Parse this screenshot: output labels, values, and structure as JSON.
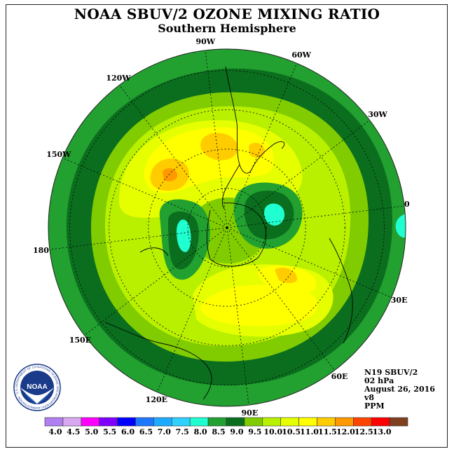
{
  "header": {
    "title": "NOAA SBUV/2 OZONE MIXING RATIO",
    "subtitle": "Southern Hemisphere"
  },
  "longitude_labels": [
    {
      "text": "90W",
      "angle": 90
    },
    {
      "text": "60W",
      "angle": 60
    },
    {
      "text": "30W",
      "angle": 30
    },
    {
      "text": "0",
      "angle": 0
    },
    {
      "text": "30E",
      "angle": -30
    },
    {
      "text": "60E",
      "angle": -60
    },
    {
      "text": "90E",
      "angle": -90
    },
    {
      "text": "120E",
      "angle": -120
    },
    {
      "text": "150E",
      "angle": -150
    },
    {
      "text": "180",
      "angle": 180
    },
    {
      "text": "150W",
      "angle": 150
    },
    {
      "text": "120W",
      "angle": 120
    }
  ],
  "info": {
    "satellite": "N19 SBUV/2",
    "level": "02 hPa",
    "date": "August 26, 2016",
    "version": "v8",
    "units": "PPM"
  },
  "logo": {
    "text": "NOAA",
    "ring_text": "NATIONAL OCEANIC AND ATMOSPHERIC ADMINISTRATION · U.S. DEPARTMENT OF COMMERCE"
  },
  "colorbar": {
    "labels": [
      "4.0",
      "4.5",
      "5.0",
      "5.5",
      "6.0",
      "6.5",
      "7.0",
      "7.5",
      "8.0",
      "8.5",
      "9.0",
      "9.5",
      "10.0",
      "10.5",
      "11.0",
      "11.5",
      "12.0",
      "12.5",
      "13.0"
    ],
    "colors": [
      "#b080f0",
      "#d8a8f0",
      "#ff00ff",
      "#8000ff",
      "#0000ff",
      "#1e78ff",
      "#1eaaff",
      "#30d0ff",
      "#20ffd0",
      "#22a030",
      "#0b6e1e",
      "#80cc00",
      "#b8f000",
      "#e6ff00",
      "#ffff00",
      "#ffcc00",
      "#ff9900",
      "#ff4400",
      "#ff0000",
      "#804020"
    ]
  },
  "map_colors": {
    "level_8": "#20ffd0",
    "level_8_5": "#22a030",
    "level_9": "#0b6e1e",
    "level_9_5": "#80cc00",
    "level_10": "#b8f000",
    "level_10_5": "#e6ff00",
    "level_11": "#ffff00",
    "level_11_5": "#ffcc00",
    "level_12": "#ff9900"
  }
}
